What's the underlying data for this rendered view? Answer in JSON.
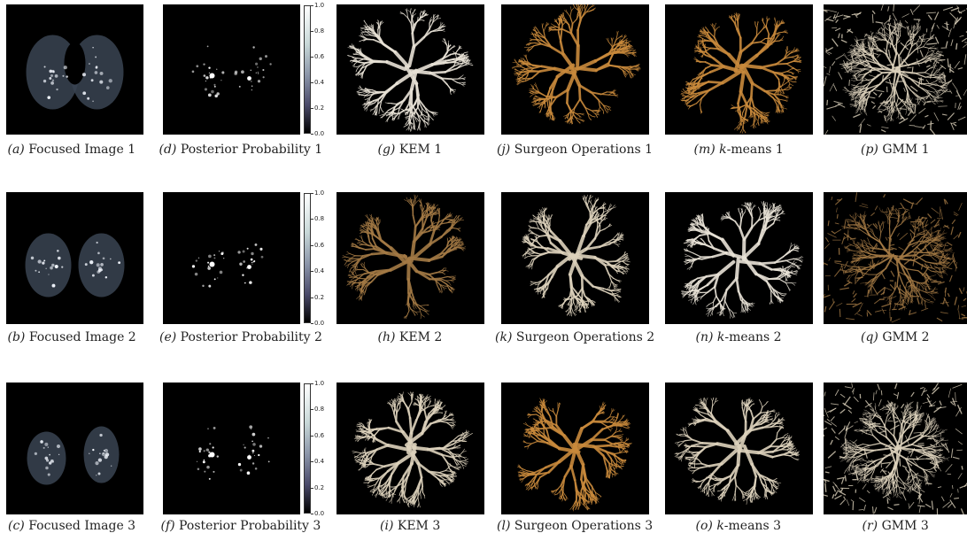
{
  "rows": [
    {
      "captions": [
        {
          "label": "(a)",
          "text": " Focused Image 1"
        },
        {
          "label": "(d)",
          "text": " Posterior Probability 1"
        },
        {
          "label": "(g)",
          "text": " KEM 1"
        },
        {
          "label": "(j)",
          "text": " Surgeon Operations 1"
        },
        {
          "label": "(m)",
          "prefix": "k",
          "text": "-means 1"
        },
        {
          "label": "(p)",
          "text": " GMM 1"
        }
      ]
    },
    {
      "captions": [
        {
          "label": "(b)",
          "text": " Focused Image 2"
        },
        {
          "label": "(e)",
          "text": " Posterior Probability 2"
        },
        {
          "label": "(h)",
          "text": " KEM 2"
        },
        {
          "label": "(k)",
          "text": " Surgeon Operations 2"
        },
        {
          "label": "(n)",
          "prefix": "k",
          "text": "-means 2"
        },
        {
          "label": "(q)",
          "text": " GMM 2"
        }
      ]
    },
    {
      "captions": [
        {
          "label": "(c)",
          "text": " Focused Image 3"
        },
        {
          "label": "(f)",
          "text": " Posterior Probability 3"
        },
        {
          "label": "(i)",
          "text": " KEM 3"
        },
        {
          "label": "(l)",
          "text": " Surgeon Operations 3"
        },
        {
          "label": "(o)",
          "prefix": "k",
          "text": "-means 3"
        },
        {
          "label": "(r)",
          "text": " GMM 3"
        }
      ]
    }
  ],
  "colorbar": {
    "ticks": [
      "1.0",
      "0.8",
      "0.6",
      "0.4",
      "0.2",
      "0.0"
    ]
  },
  "colors": {
    "vessel_white": "#e8e2d6",
    "vessel_amber": "#c98a3c",
    "vessel_tan": "#a47a45",
    "vessel_cream": "#ddd2bc",
    "lung_tissue": "#3a4452",
    "highlight": "#f4f8ff"
  }
}
